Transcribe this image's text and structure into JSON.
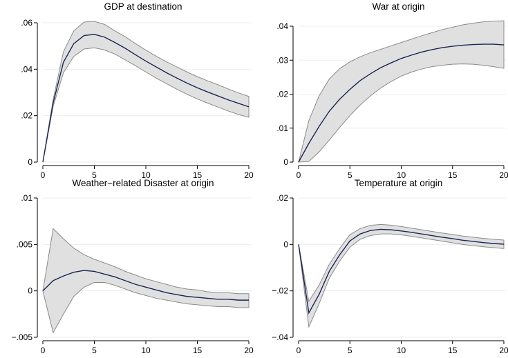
{
  "chart_data": [
    {
      "type": "line",
      "title": "GDP at destination",
      "xlim": [
        0,
        20
      ],
      "ylim": [
        0,
        0.06
      ],
      "xticks": [
        0,
        5,
        10,
        15,
        20
      ],
      "xtick_labels": [
        "0",
        "5",
        "10",
        "15",
        "20"
      ],
      "yticks": [
        0,
        0.02,
        0.04,
        0.06
      ],
      "ytick_labels": [
        "0",
        ".02",
        ".04",
        ".06"
      ],
      "grid": true,
      "x": [
        0,
        1,
        2,
        3,
        4,
        5,
        6,
        7,
        8,
        9,
        10,
        11,
        12,
        13,
        14,
        15,
        16,
        17,
        18,
        19,
        20
      ],
      "series": [
        {
          "values": [
            0,
            0.0255,
            0.043,
            0.051,
            0.0545,
            0.055,
            0.0538,
            0.0515,
            0.049,
            0.0462,
            0.0435,
            0.041,
            0.0385,
            0.0362,
            0.034,
            0.032,
            0.0302,
            0.0285,
            0.0268,
            0.0253,
            0.0238
          ],
          "lower": [
            0,
            0.024,
            0.0385,
            0.0455,
            0.0487,
            0.0492,
            0.0483,
            0.0465,
            0.044,
            0.0415,
            0.0388,
            0.0362,
            0.0338,
            0.0314,
            0.0292,
            0.0272,
            0.0254,
            0.0237,
            0.022,
            0.0205,
            0.0193
          ],
          "upper": [
            0,
            0.027,
            0.0475,
            0.0565,
            0.0603,
            0.0606,
            0.0593,
            0.0565,
            0.054,
            0.051,
            0.0482,
            0.0456,
            0.0432,
            0.041,
            0.0388,
            0.0368,
            0.035,
            0.0333,
            0.0315,
            0.0298,
            0.0283
          ]
        }
      ]
    },
    {
      "type": "line",
      "title": "War at origin",
      "xlim": [
        0,
        20
      ],
      "ylim": [
        0,
        0.04
      ],
      "xticks": [
        0,
        5,
        10,
        15,
        20
      ],
      "xtick_labels": [
        "0",
        "5",
        "10",
        "15",
        "20"
      ],
      "yticks": [
        0,
        0.01,
        0.02,
        0.03,
        0.04
      ],
      "ytick_labels": [
        "0",
        ".01",
        ".02",
        ".03",
        ".04"
      ],
      "grid": true,
      "x": [
        0,
        1,
        2,
        3,
        4,
        5,
        6,
        7,
        8,
        9,
        10,
        11,
        12,
        13,
        14,
        15,
        16,
        17,
        18,
        19,
        20
      ],
      "series": [
        {
          "values": [
            0,
            0.0055,
            0.0105,
            0.015,
            0.0185,
            0.0214,
            0.024,
            0.026,
            0.0278,
            0.0292,
            0.0305,
            0.0315,
            0.0324,
            0.0331,
            0.0337,
            0.0341,
            0.0344,
            0.0346,
            0.0347,
            0.0347,
            0.0345
          ],
          "lower": [
            0,
            0.0002,
            0.003,
            0.0065,
            0.0102,
            0.0137,
            0.0168,
            0.0195,
            0.0218,
            0.0237,
            0.0253,
            0.0265,
            0.0274,
            0.0281,
            0.0285,
            0.0288,
            0.0289,
            0.0288,
            0.0285,
            0.0281,
            0.0276
          ],
          "upper": [
            0,
            0.0122,
            0.0195,
            0.0245,
            0.0275,
            0.0295,
            0.031,
            0.0322,
            0.0332,
            0.0342,
            0.0352,
            0.0362,
            0.0372,
            0.0381,
            0.039,
            0.0397,
            0.0404,
            0.0409,
            0.0413,
            0.0415,
            0.0416
          ]
        }
      ]
    },
    {
      "type": "line",
      "title": "Weather−related Disaster at origin",
      "xlim": [
        0,
        20
      ],
      "ylim": [
        -0.005,
        0.01
      ],
      "xticks": [
        0,
        5,
        10,
        15,
        20
      ],
      "xtick_labels": [
        "0",
        "5",
        "10",
        "15",
        "20"
      ],
      "yticks": [
        -0.005,
        0,
        0.005,
        0.01
      ],
      "ytick_labels": [
        "−.005",
        "0",
        ".005",
        ".01"
      ],
      "grid": true,
      "x": [
        0,
        1,
        2,
        3,
        4,
        5,
        6,
        7,
        8,
        9,
        10,
        11,
        12,
        13,
        14,
        15,
        16,
        17,
        18,
        19,
        20
      ],
      "series": [
        {
          "values": [
            0,
            0.0011,
            0.0016,
            0.002,
            0.0022,
            0.0021,
            0.0018,
            0.0015,
            0.0011,
            0.0007,
            0.0004,
            0.0001,
            -0.0002,
            -0.0004,
            -0.0006,
            -0.0007,
            -0.0008,
            -0.0009,
            -0.0009,
            -0.001,
            -0.001
          ],
          "lower": [
            0,
            -0.0045,
            -0.0025,
            -0.0006,
            0.0004,
            0.0009,
            0.0009,
            0.0006,
            0.0002,
            -0.0002,
            -0.0005,
            -0.0008,
            -0.001,
            -0.0012,
            -0.0014,
            -0.0015,
            -0.0016,
            -0.0017,
            -0.0017,
            -0.0018,
            -0.0018
          ],
          "upper": [
            0,
            0.0067,
            0.0056,
            0.0046,
            0.0039,
            0.0034,
            0.003,
            0.0026,
            0.0021,
            0.0017,
            0.0013,
            0.001,
            0.0007,
            0.0004,
            0.0002,
            0.0001,
            -0.0001,
            -0.0002,
            -0.0002,
            -0.0003,
            -0.0003
          ]
        }
      ]
    },
    {
      "type": "line",
      "title": "Temperature at origin",
      "xlim": [
        0,
        20
      ],
      "ylim": [
        -0.04,
        0.02
      ],
      "xticks": [
        0,
        5,
        10,
        15,
        20
      ],
      "xtick_labels": [
        "0",
        "5",
        "10",
        "15",
        "20"
      ],
      "yticks": [
        -0.04,
        -0.02,
        0,
        0.02
      ],
      "ytick_labels": [
        "−.04",
        "−.02",
        "0",
        ".02"
      ],
      "grid": true,
      "x": [
        0,
        1,
        2,
        3,
        4,
        5,
        6,
        7,
        8,
        9,
        10,
        11,
        12,
        13,
        14,
        15,
        16,
        17,
        18,
        19,
        20
      ],
      "series": [
        {
          "values": [
            0,
            -0.0295,
            -0.0215,
            -0.0115,
            -0.0045,
            0.0015,
            0.0045,
            0.006,
            0.0065,
            0.0063,
            0.0058,
            0.0052,
            0.0045,
            0.0038,
            0.0031,
            0.0025,
            0.0018,
            0.0013,
            0.0008,
            0.0004,
            0.0001
          ],
          "lower": [
            0,
            -0.0355,
            -0.0255,
            -0.0145,
            -0.0072,
            -0.0012,
            0.0022,
            0.0038,
            0.0045,
            0.0045,
            0.0041,
            0.0035,
            0.0028,
            0.0021,
            0.0014,
            0.0007,
            0.0,
            -0.0005,
            -0.001,
            -0.0014,
            -0.0018
          ],
          "upper": [
            0,
            -0.0245,
            -0.0175,
            -0.0085,
            -0.0018,
            0.0042,
            0.0068,
            0.0082,
            0.0086,
            0.0083,
            0.0077,
            0.007,
            0.0063,
            0.0056,
            0.0049,
            0.0043,
            0.0036,
            0.0031,
            0.0026,
            0.0022,
            0.0019
          ]
        }
      ]
    }
  ]
}
